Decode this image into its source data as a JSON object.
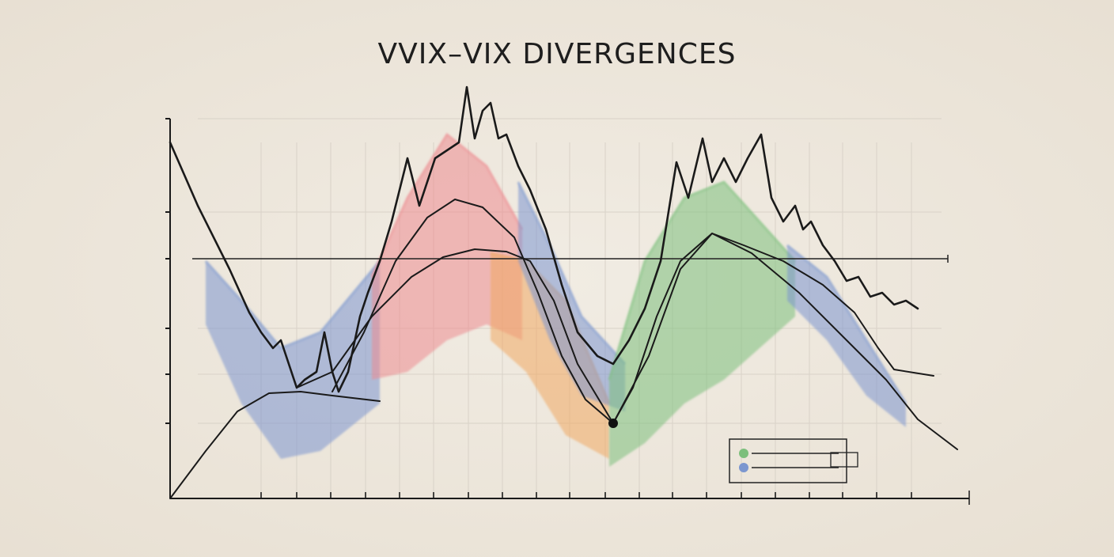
{
  "chart_data": {
    "type": "line",
    "title": "VVIX–VIX DIVERGENCES",
    "xlim": [
      0,
      1010
    ],
    "ylim": [
      0,
      480
    ],
    "xticks": [
      115,
      160,
      203,
      247,
      290,
      333,
      377,
      420,
      463,
      505,
      550,
      593,
      635,
      678,
      722,
      765,
      808,
      850,
      893,
      937
    ],
    "yticks": [
      95,
      157,
      215,
      303,
      362,
      480
    ],
    "grid": true,
    "series": [
      {
        "color": "#1a1a1a",
        "x": [
          0,
          35,
          75,
          100,
          115,
          130,
          140,
          150,
          160,
          170,
          185,
          195,
          205,
          213,
          225,
          240,
          250,
          265,
          280,
          300,
          315,
          335,
          350,
          365,
          375,
          385,
          395,
          405,
          415,
          425,
          440,
          455,
          475,
          495,
          515,
          540,
          560,
          580,
          600,
          620,
          640,
          655,
          673,
          685,
          700,
          715,
          730,
          747,
          760,
          775,
          790,
          800,
          810,
          825,
          840,
          855,
          870,
          885,
          900,
          915,
          930,
          945
        ],
        "values": [
          450,
          370,
          290,
          235,
          210,
          190,
          200,
          170,
          140,
          150,
          160,
          210,
          160,
          135,
          160,
          230,
          260,
          300,
          350,
          430,
          370,
          430,
          440,
          450,
          520,
          455,
          490,
          500,
          455,
          460,
          420,
          390,
          340,
          270,
          210,
          180,
          170,
          200,
          240,
          300,
          425,
          380,
          455,
          400,
          430,
          400,
          430,
          460,
          380,
          350,
          370,
          340,
          350,
          320,
          300,
          275,
          280,
          255,
          260,
          245,
          250,
          240
        ]
      },
      {
        "color": "#1a1a1a",
        "x": [
          0,
          45,
          85,
          125,
          165,
          205,
          265
        ],
        "values": [
          0,
          60,
          110,
          133,
          135,
          130,
          123
        ]
      },
      {
        "color": "#1a1a1a",
        "x": [
          205,
          245,
          285,
          325,
          360,
          395,
          435,
          465,
          495,
          525,
          560,
          585,
          615,
          645,
          685,
          725,
          775,
          825,
          865,
          895,
          915,
          965
        ],
        "values": [
          135,
          210,
          300,
          355,
          378,
          368,
          330,
          260,
          180,
          125,
          95,
          140,
          230,
          300,
          335,
          320,
          300,
          270,
          235,
          190,
          163,
          155
        ]
      },
      {
        "color": "#1a1a1a",
        "x": [
          160,
          205,
          255,
          305,
          345,
          385,
          425,
          455,
          485,
          515,
          560
        ],
        "values": [
          140,
          160,
          230,
          280,
          305,
          315,
          312,
          300,
          250,
          170,
          95
        ]
      },
      {
        "color": "#1a1a1a",
        "x": [
          560,
          605,
          645,
          685,
          735,
          795,
          855,
          905,
          945,
          995
        ],
        "values": [
          95,
          180,
          290,
          335,
          310,
          260,
          200,
          150,
          100,
          62
        ]
      }
    ],
    "points": [
      {
        "x": 560,
        "y": 95,
        "color": "#111111"
      }
    ],
    "reference_line": {
      "y": 303,
      "x": [
        28,
        983
      ],
      "color": "#222222"
    },
    "bands": [
      {
        "color": "#7b96cf",
        "x": [
          45,
          90,
          140,
          190,
          265
        ],
        "upper": [
          300,
          250,
          190,
          210,
          300
        ],
        "lower": [
          220,
          120,
          50,
          60,
          120
        ]
      },
      {
        "color": "#ec8a90",
        "x": [
          255,
          300,
          350,
          400,
          445
        ],
        "upper": [
          280,
          380,
          460,
          420,
          340
        ],
        "lower": [
          150,
          160,
          200,
          220,
          200
        ]
      },
      {
        "color": "#f0a860",
        "x": [
          405,
          450,
          500,
          555
        ],
        "upper": [
          310,
          300,
          250,
          120
        ],
        "lower": [
          200,
          160,
          80,
          50
        ]
      },
      {
        "color": "#7b96cf",
        "x": [
          440,
          480,
          520,
          575
        ],
        "upper": [
          400,
          320,
          230,
          170
        ],
        "lower": [
          300,
          200,
          130,
          110
        ]
      },
      {
        "color": "#7cbf7c",
        "x": [
          555,
          600,
          650,
          700,
          790
        ],
        "upper": [
          150,
          300,
          380,
          400,
          300
        ],
        "lower": [
          40,
          70,
          120,
          150,
          230
        ]
      },
      {
        "color": "#7b96cf",
        "x": [
          780,
          830,
          880,
          930
        ],
        "upper": [
          320,
          280,
          200,
          120
        ],
        "lower": [
          250,
          200,
          130,
          90
        ]
      }
    ]
  }
}
